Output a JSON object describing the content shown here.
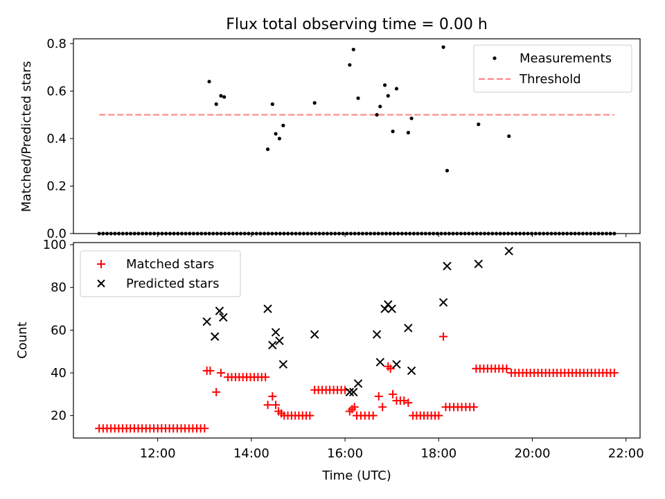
{
  "title": "Flux total observing time = 0.00 h",
  "colors": {
    "threshold": "#ff7f7f",
    "matched": "#ff0000",
    "predicted": "#000000",
    "measurement": "#000000"
  },
  "chart_data": [
    {
      "type": "scatter",
      "panel": "top",
      "ylabel": "Matched/Predicted stars",
      "xlim": [
        10.2,
        22.3
      ],
      "ylim": [
        0,
        0.82
      ],
      "yticks": [
        0.0,
        0.2,
        0.4,
        0.6,
        0.8
      ],
      "ytick_labels": [
        "0.0",
        "0.2",
        "0.4",
        "0.6",
        "0.8"
      ],
      "legend": {
        "position": "top-right",
        "entries": [
          "Measurements",
          "Threshold"
        ]
      },
      "threshold": {
        "name": "Threshold",
        "y": 0.5,
        "x_start": 10.75,
        "x_end": 21.75
      },
      "series": [
        {
          "name": "Measurements",
          "x": [
            13.1,
            13.25,
            13.35,
            13.42,
            14.35,
            14.45,
            14.52,
            14.6,
            14.68,
            15.35,
            16.1,
            16.18,
            16.28,
            16.68,
            16.75,
            16.85,
            16.92,
            17.02,
            17.1,
            17.35,
            17.42,
            18.1,
            18.18,
            18.85,
            19.5
          ],
          "values": [
            0.64,
            0.545,
            0.58,
            0.575,
            0.355,
            0.545,
            0.42,
            0.4,
            0.455,
            0.55,
            0.71,
            0.775,
            0.57,
            0.5,
            0.535,
            0.625,
            0.58,
            0.43,
            0.61,
            0.425,
            0.485,
            0.785,
            0.265,
            0.46,
            0.41
          ]
        }
      ],
      "zero_points": {
        "x_start": 10.75,
        "x_end": 21.75,
        "count": 132,
        "y": 0
      }
    },
    {
      "type": "scatter",
      "panel": "bottom",
      "xlabel": "Time (UTC)",
      "ylabel": "Count",
      "xlim": [
        10.2,
        22.3
      ],
      "ylim": [
        9.5,
        101
      ],
      "xticks": [
        12,
        14,
        16,
        18,
        20,
        22
      ],
      "xtick_labels": [
        "12:00",
        "14:00",
        "16:00",
        "18:00",
        "20:00",
        "22:00"
      ],
      "yticks": [
        20,
        40,
        60,
        80,
        100
      ],
      "ytick_labels": [
        "20",
        "40",
        "60",
        "80",
        "100"
      ],
      "legend": {
        "position": "top-left",
        "entries": [
          "Matched stars",
          "Predicted stars"
        ]
      },
      "series": [
        {
          "name": "Matched stars",
          "segments": [
            {
              "x_start": 10.75,
              "x_end": 13.0,
              "count": 28,
              "value": 14
            },
            {
              "x_start": 13.5,
              "x_end": 14.3,
              "count": 11,
              "value": 38
            },
            {
              "x_start": 14.7,
              "x_end": 15.25,
              "count": 8,
              "value": 20
            },
            {
              "x_start": 15.35,
              "x_end": 16.0,
              "count": 9,
              "value": 32
            },
            {
              "x_start": 16.25,
              "x_end": 16.6,
              "count": 5,
              "value": 20
            },
            {
              "x_start": 17.45,
              "x_end": 18.0,
              "count": 8,
              "value": 20
            },
            {
              "x_start": 18.15,
              "x_end": 18.75,
              "count": 8,
              "value": 24
            },
            {
              "x_start": 18.8,
              "x_end": 19.45,
              "count": 9,
              "value": 42
            },
            {
              "x_start": 19.55,
              "x_end": 21.75,
              "count": 28,
              "value": 40
            }
          ],
          "x": [
            13.05,
            13.12,
            13.25,
            13.35,
            14.35,
            14.45,
            14.52,
            14.58,
            14.64,
            16.1,
            16.15,
            16.2,
            16.72,
            16.8,
            16.92,
            16.97,
            17.02,
            17.1,
            17.18,
            17.26,
            17.35,
            18.1
          ],
          "values": [
            41,
            41,
            31,
            40,
            25,
            29,
            25,
            22,
            21,
            22,
            23,
            24,
            29,
            24,
            43,
            42,
            30,
            27,
            27,
            27,
            26,
            57
          ]
        },
        {
          "name": "Predicted stars",
          "x": [
            13.05,
            13.22,
            13.32,
            13.4,
            14.35,
            14.45,
            14.52,
            14.6,
            14.68,
            15.35,
            16.1,
            16.18,
            16.28,
            16.68,
            16.75,
            16.85,
            16.92,
            17.0,
            17.1,
            17.35,
            17.42,
            18.1,
            18.18,
            18.85,
            19.5
          ],
          "values": [
            64,
            57,
            69,
            66,
            70,
            53,
            59,
            55,
            44,
            58,
            31,
            31,
            35,
            58,
            45,
            70,
            72,
            70,
            44,
            61,
            41,
            73,
            90,
            91,
            97
          ]
        }
      ]
    }
  ]
}
